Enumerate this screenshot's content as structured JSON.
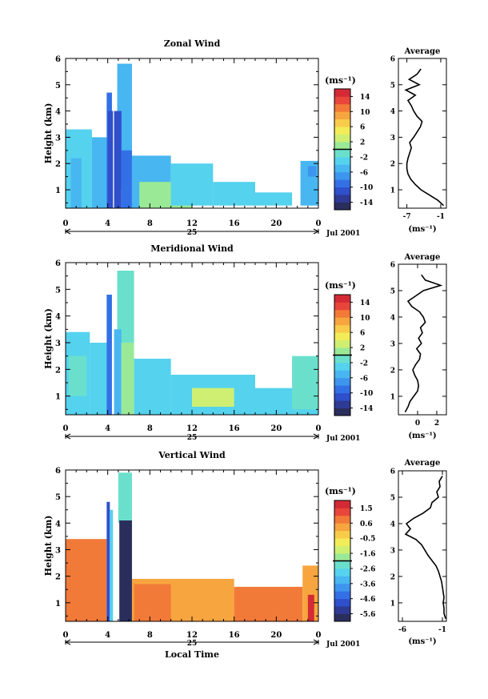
{
  "chart_data": [
    {
      "type": "heatmap",
      "title": "Zonal Wind",
      "ylabel": "Height (km)",
      "xticks": [
        "0",
        "4",
        "8",
        "12",
        "16",
        "20",
        "0"
      ],
      "yticks": [
        "1",
        "2",
        "3",
        "4",
        "5",
        "6"
      ],
      "xlim": [
        0,
        24
      ],
      "ylim": [
        0.3,
        6.0
      ],
      "date_day": "25",
      "date_label": "Jul 2001",
      "colorbar": {
        "unit": "(ms⁻¹)",
        "labels": [
          "14",
          "10",
          "6",
          "2",
          "-2",
          "-6",
          "-10",
          "-14"
        ],
        "range": [
          -16,
          16
        ]
      },
      "echo": [
        {
          "x": [
            0,
            2.5
          ],
          "y": [
            0.3,
            3.3
          ],
          "value": -4
        },
        {
          "x": [
            0.5,
            1.5
          ],
          "y": [
            0.3,
            2.2
          ],
          "value": -6
        },
        {
          "x": [
            2.5,
            4.0
          ],
          "y": [
            0.3,
            3.0
          ],
          "value": -5
        },
        {
          "x": [
            3.9,
            4.4
          ],
          "y": [
            0.3,
            4.7
          ],
          "value": -10
        },
        {
          "x": [
            4.0,
            4.5
          ],
          "y": [
            0.3,
            4.0
          ],
          "value": -12
        },
        {
          "x": [
            4.9,
            6.3
          ],
          "y": [
            1.0,
            5.8
          ],
          "value": -6
        },
        {
          "x": [
            4.6,
            5.3
          ],
          "y": [
            0.3,
            4.0
          ],
          "value": -12
        },
        {
          "x": [
            5.3,
            6.3
          ],
          "y": [
            0.3,
            2.5
          ],
          "value": -9
        },
        {
          "x": [
            6.3,
            10.0
          ],
          "y": [
            0.3,
            2.3
          ],
          "value": -5
        },
        {
          "x": [
            7.0,
            12.0
          ],
          "y": [
            0.3,
            1.3
          ],
          "value": 1
        },
        {
          "x": [
            10.0,
            14.0
          ],
          "y": [
            0.4,
            2.0
          ],
          "value": -4
        },
        {
          "x": [
            14.0,
            18.0
          ],
          "y": [
            0.4,
            1.3
          ],
          "value": -4
        },
        {
          "x": [
            18.0,
            21.5
          ],
          "y": [
            0.4,
            0.9
          ],
          "value": -4
        },
        {
          "x": [
            22.3,
            24.0
          ],
          "y": [
            0.4,
            2.1
          ],
          "value": -5
        },
        {
          "x": [
            23.0,
            23.8
          ],
          "y": [
            1.5,
            1.9
          ],
          "value": -8
        }
      ],
      "profile": {
        "title": "Average",
        "xticks": [
          "-7",
          "-1"
        ],
        "xlim": [
          -8.5,
          0
        ],
        "xlabel": "(ms⁻¹)",
        "yticks": [
          "1",
          "2",
          "3",
          "4",
          "5",
          "6"
        ],
        "height": [
          0.4,
          0.6,
          0.8,
          1.0,
          1.2,
          1.4,
          1.6,
          1.8,
          2.0,
          2.2,
          2.4,
          2.6,
          2.8,
          3.0,
          3.2,
          3.4,
          3.6,
          3.8,
          4.0,
          4.2,
          4.4,
          4.6,
          4.8,
          5.0,
          5.2,
          5.4,
          5.6
        ],
        "value": [
          -0.5,
          -1.5,
          -3.0,
          -4.5,
          -5.5,
          -6.3,
          -6.8,
          -7.0,
          -7.0,
          -6.8,
          -6.5,
          -6.2,
          -6.5,
          -5.8,
          -5.2,
          -4.6,
          -4.3,
          -5.2,
          -5.8,
          -6.2,
          -6.8,
          -5.5,
          -7.2,
          -4.8,
          -6.6,
          -5.2,
          -4.5
        ]
      }
    },
    {
      "type": "heatmap",
      "title": "Meridional Wind",
      "ylabel": "Height (km)",
      "xticks": [
        "0",
        "4",
        "8",
        "12",
        "16",
        "20",
        "0"
      ],
      "yticks": [
        "1",
        "2",
        "3",
        "4",
        "5",
        "6"
      ],
      "xlim": [
        0,
        24
      ],
      "ylim": [
        0.3,
        6.0
      ],
      "date_day": "25",
      "date_label": "Jul 2001",
      "colorbar": {
        "unit": "(ms⁻¹)",
        "labels": [
          "14",
          "10",
          "6",
          "2",
          "-2",
          "-6",
          "-10",
          "-14"
        ],
        "range": [
          -16,
          16
        ]
      },
      "echo": [
        {
          "x": [
            0,
            2.3
          ],
          "y": [
            0.3,
            3.4
          ],
          "value": -4
        },
        {
          "x": [
            0.3,
            2.0
          ],
          "y": [
            1.0,
            2.5
          ],
          "value": -1
        },
        {
          "x": [
            2.3,
            4.0
          ],
          "y": [
            0.3,
            3.0
          ],
          "value": -3
        },
        {
          "x": [
            3.9,
            4.4
          ],
          "y": [
            0.3,
            4.8
          ],
          "value": -10
        },
        {
          "x": [
            4.9,
            6.5
          ],
          "y": [
            3.0,
            5.7
          ],
          "value": -1
        },
        {
          "x": [
            4.6,
            5.3
          ],
          "y": [
            0.3,
            3.5
          ],
          "value": -5
        },
        {
          "x": [
            5.3,
            6.5
          ],
          "y": [
            0.3,
            3.0
          ],
          "value": 0
        },
        {
          "x": [
            6.5,
            10.0
          ],
          "y": [
            0.3,
            2.4
          ],
          "value": -3
        },
        {
          "x": [
            10.0,
            18.0
          ],
          "y": [
            0.3,
            1.8
          ],
          "value": -3
        },
        {
          "x": [
            12.0,
            16.0
          ],
          "y": [
            0.6,
            1.3
          ],
          "value": 2
        },
        {
          "x": [
            18.0,
            24.0
          ],
          "y": [
            0.3,
            1.3
          ],
          "value": -3
        },
        {
          "x": [
            21.5,
            24.0
          ],
          "y": [
            0.5,
            2.5
          ],
          "value": -1
        }
      ],
      "profile": {
        "title": "Average",
        "xticks": [
          "0",
          "2"
        ],
        "xlim": [
          -2,
          3
        ],
        "xlabel": "(ms⁻¹)",
        "yticks": [
          "1",
          "2",
          "3",
          "4",
          "5",
          "6"
        ],
        "height": [
          0.4,
          0.6,
          0.8,
          1.0,
          1.2,
          1.4,
          1.6,
          1.8,
          2.0,
          2.2,
          2.4,
          2.6,
          2.8,
          3.0,
          3.2,
          3.4,
          3.6,
          3.8,
          4.0,
          4.2,
          4.4,
          4.6,
          4.8,
          5.0,
          5.2,
          5.4,
          5.6
        ],
        "value": [
          -1.3,
          -1.0,
          -0.8,
          -0.4,
          0.0,
          0.1,
          0.0,
          -0.3,
          -0.5,
          -0.2,
          0.2,
          0.3,
          -0.1,
          0.4,
          0.1,
          0.5,
          0.3,
          0.8,
          0.6,
          0.2,
          -0.6,
          -1.0,
          -0.2,
          0.6,
          2.4,
          0.8,
          0.4
        ]
      }
    },
    {
      "type": "heatmap",
      "title": "Vertical Wind",
      "ylabel": "Height (km)",
      "xlabel": "Local Time",
      "xticks": [
        "0",
        "4",
        "8",
        "12",
        "16",
        "20",
        "0"
      ],
      "yticks": [
        "1",
        "2",
        "3",
        "4",
        "5",
        "6"
      ],
      "xlim": [
        0,
        24
      ],
      "ylim": [
        0.3,
        6.0
      ],
      "date_day": "25",
      "date_label": "Jul 2001",
      "colorbar": {
        "unit": "(ms⁻¹)",
        "labels": [
          "1.5",
          "0.6",
          "-0.5",
          "-1.6",
          "-2.6",
          "-3.6",
          "-4.6",
          "-5.6"
        ],
        "range": [
          -6.2,
          2.1
        ]
      },
      "echo": [
        {
          "x": [
            0,
            3.9
          ],
          "y": [
            0.3,
            3.4
          ],
          "value": 0.6
        },
        {
          "x": [
            0.3,
            2.5
          ],
          "y": [
            0.5,
            2.6
          ],
          "value": 1.0
        },
        {
          "x": [
            3.9,
            4.2
          ],
          "y": [
            0.3,
            4.8
          ],
          "value": -5.0
        },
        {
          "x": [
            4.2,
            4.5
          ],
          "y": [
            0.3,
            4.5
          ],
          "value": -2.8
        },
        {
          "x": [
            5.0,
            6.3
          ],
          "y": [
            4.0,
            5.9
          ],
          "value": -2.3
        },
        {
          "x": [
            5.1,
            6.3
          ],
          "y": [
            0.3,
            4.1
          ],
          "value": -6.0
        },
        {
          "x": [
            6.3,
            16.0
          ],
          "y": [
            0.3,
            1.9
          ],
          "value": 0.4
        },
        {
          "x": [
            6.5,
            10.0
          ],
          "y": [
            0.3,
            1.7
          ],
          "value": 0.9
        },
        {
          "x": [
            16.0,
            22.5
          ],
          "y": [
            0.3,
            1.6
          ],
          "value": 0.6
        },
        {
          "x": [
            22.5,
            24.0
          ],
          "y": [
            0.3,
            2.4
          ],
          "value": 0.3
        },
        {
          "x": [
            23.0,
            23.6
          ],
          "y": [
            0.3,
            1.3
          ],
          "value": 1.6
        }
      ],
      "profile": {
        "title": "Average",
        "xticks": [
          "-6",
          "-1"
        ],
        "xlim": [
          -6.5,
          -0.5
        ],
        "xlabel": "(ms⁻¹)",
        "yticks": [
          "1",
          "2",
          "3",
          "4",
          "5",
          "6"
        ],
        "height": [
          0.4,
          0.6,
          0.8,
          1.0,
          1.2,
          1.4,
          1.6,
          1.8,
          2.0,
          2.2,
          2.4,
          2.6,
          2.8,
          3.0,
          3.2,
          3.4,
          3.6,
          3.8,
          4.0,
          4.2,
          4.4,
          4.6,
          4.8,
          5.0,
          5.2,
          5.4,
          5.6,
          5.8
        ],
        "value": [
          -0.6,
          -0.8,
          -0.8,
          -0.9,
          -0.8,
          -0.9,
          -1.0,
          -1.1,
          -1.3,
          -1.5,
          -1.8,
          -2.3,
          -2.8,
          -3.2,
          -3.6,
          -4.3,
          -5.6,
          -5.0,
          -5.5,
          -4.6,
          -3.4,
          -2.5,
          -2.3,
          -1.5,
          -1.7,
          -1.3,
          -1.4,
          -1.0
        ]
      }
    }
  ]
}
